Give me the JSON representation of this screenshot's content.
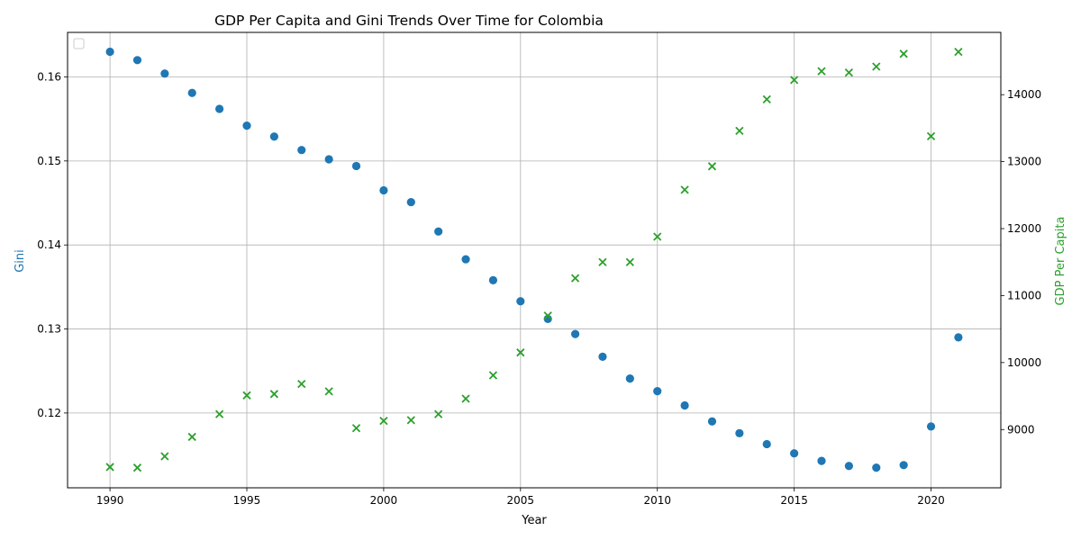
{
  "chart_data": {
    "type": "scatter",
    "title": "GDP Per Capita and Gini Trends Over Time for Colombia",
    "xlabel": "Year",
    "ylabel_left": "Gini",
    "ylabel_right": "GDP Per Capita",
    "xlim": [
      1988.45,
      2022.55
    ],
    "ylim_left": [
      0.1111,
      0.1653
    ],
    "ylim_right": [
      8130,
      14930
    ],
    "x_ticks": [
      1990,
      1995,
      2000,
      2005,
      2010,
      2015,
      2020
    ],
    "y_left_ticks": [
      0.12,
      0.13,
      0.14,
      0.15,
      0.16
    ],
    "y_right_ticks": [
      9000,
      10000,
      11000,
      12000,
      13000,
      14000
    ],
    "grid": true,
    "legend": "top-left (empty)",
    "colors": {
      "gini": "#1f77b4",
      "gdp": "#2ca02c",
      "axis": "#000000",
      "grid": "#b0b0b0"
    },
    "x": [
      1990,
      1991,
      1992,
      1993,
      1994,
      1995,
      1996,
      1997,
      1998,
      1999,
      2000,
      2001,
      2002,
      2003,
      2004,
      2005,
      2006,
      2007,
      2008,
      2009,
      2010,
      2011,
      2012,
      2013,
      2014,
      2015,
      2016,
      2017,
      2018,
      2019,
      2020,
      2021
    ],
    "series": [
      {
        "axis": "left",
        "marker": "circle",
        "values": [
          0.163,
          0.162,
          0.1604,
          0.1581,
          0.1562,
          0.1542,
          0.1529,
          0.1513,
          0.1502,
          0.1494,
          0.1465,
          0.1451,
          0.1416,
          0.1383,
          0.1358,
          0.1333,
          0.1312,
          0.1294,
          0.1267,
          0.1241,
          0.1226,
          0.1209,
          0.119,
          0.1176,
          0.1163,
          0.1152,
          0.1143,
          0.1137,
          0.1135,
          0.1138,
          0.1184,
          0.129
        ]
      },
      {
        "axis": "right",
        "marker": "x",
        "values": [
          8440,
          8430,
          8600,
          8890,
          9230,
          9510,
          9530,
          9680,
          9570,
          9020,
          9130,
          9140,
          9230,
          9460,
          9810,
          10150,
          10700,
          11260,
          11500,
          11500,
          11880,
          12580,
          12930,
          13460,
          13930,
          14220,
          14350,
          14330,
          14420,
          14610,
          13380,
          14640
        ]
      }
    ]
  }
}
